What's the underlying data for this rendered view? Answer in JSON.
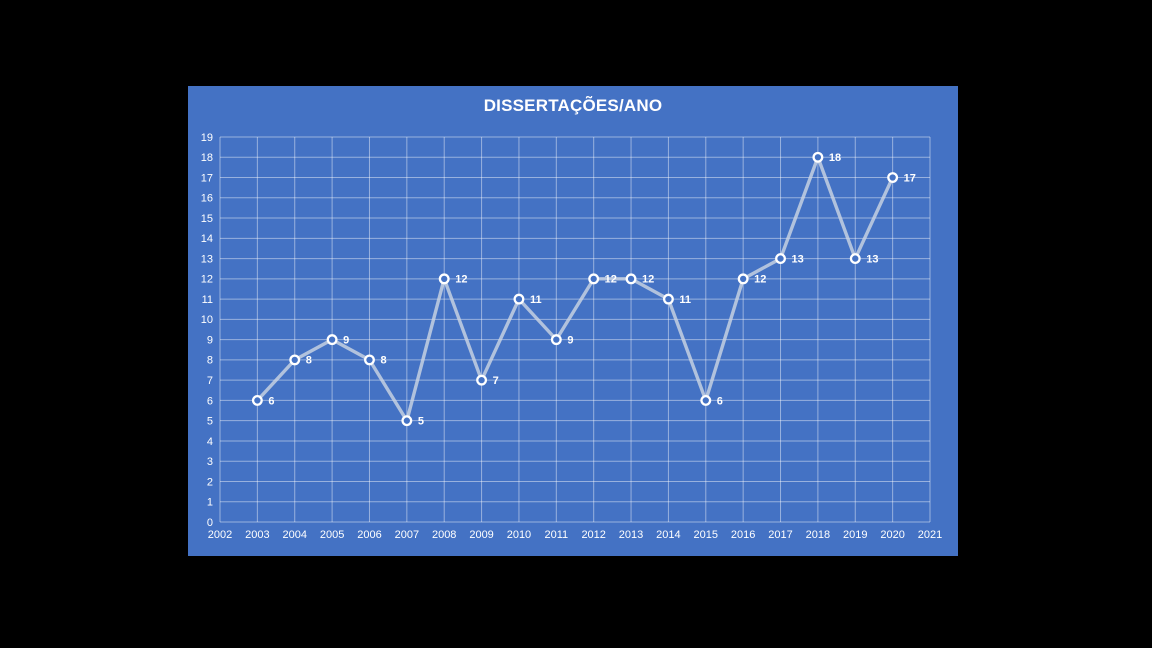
{
  "page": {
    "background_color": "#000000"
  },
  "chart": {
    "title": "DISSERTAÇÕES/ANO",
    "panel_bg": "#4472C4",
    "gridline_color": "rgba(255,255,255,0.45)",
    "series_line_color": "#CDD6E4",
    "series_line_opacity": 0.8,
    "marker_fill": "#4472C4",
    "marker_stroke": "#FFFFFF",
    "axis_text_color": "#FFFFFF",
    "data_label_color": "#FFFFFF"
  },
  "chart_data": {
    "type": "line",
    "title": "DISSERTAÇÕES/ANO",
    "x_categories": [
      "2002",
      "2003",
      "2004",
      "2005",
      "2006",
      "2007",
      "2008",
      "2009",
      "2010",
      "2011",
      "2012",
      "2013",
      "2014",
      "2015",
      "2016",
      "2017",
      "2018",
      "2019",
      "2020",
      "2021"
    ],
    "series": [
      {
        "name": "DISSERTAÇÕES/ANO",
        "points": [
          {
            "x": "2003",
            "y": 6
          },
          {
            "x": "2004",
            "y": 8
          },
          {
            "x": "2005",
            "y": 9
          },
          {
            "x": "2006",
            "y": 8
          },
          {
            "x": "2007",
            "y": 5
          },
          {
            "x": "2008",
            "y": 12
          },
          {
            "x": "2009",
            "y": 7
          },
          {
            "x": "2010",
            "y": 11
          },
          {
            "x": "2011",
            "y": 9
          },
          {
            "x": "2012",
            "y": 12
          },
          {
            "x": "2013",
            "y": 12
          },
          {
            "x": "2014",
            "y": 11
          },
          {
            "x": "2015",
            "y": 6
          },
          {
            "x": "2016",
            "y": 12
          },
          {
            "x": "2017",
            "y": 13
          },
          {
            "x": "2018",
            "y": 18
          },
          {
            "x": "2019",
            "y": 13
          },
          {
            "x": "2020",
            "y": 17
          }
        ]
      }
    ],
    "ylim": [
      0,
      19
    ],
    "y_tick_step": 1,
    "grid": true,
    "legend": "none",
    "data_label_position": "right",
    "xlabel": "",
    "ylabel": ""
  }
}
